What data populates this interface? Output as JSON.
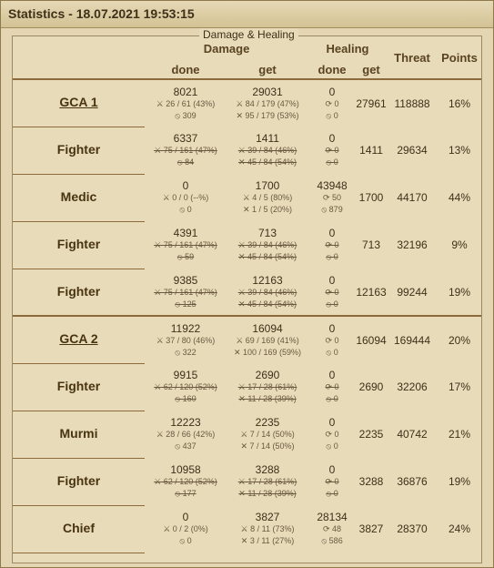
{
  "window": {
    "title": "Statistics - 18.07.2021 19:53:15"
  },
  "panel": {
    "legend": "Damage & Healing",
    "headers": {
      "damage": "Damage",
      "healing": "Healing",
      "threat": "Threat",
      "points": "Points",
      "done": "done",
      "get": "get"
    }
  },
  "rows": [
    {
      "name": "GCA 1",
      "link": true,
      "group_start": false,
      "dmg_done": "8021",
      "dmg_done_sub1": "⚔ 26 / 61 (43%)",
      "dmg_done_sub2": "⦸ 309",
      "dmg_get": "29031",
      "dmg_get_sub1": "⚔ 84 / 179 (47%)",
      "dmg_get_sub2": "✕ 95 / 179 (53%)",
      "heal_done": "0",
      "heal_done_sub1": "⟳ 0",
      "heal_done_sub2": "⦸ 0",
      "heal_get": "27961",
      "threat": "118888",
      "points": "16%",
      "struck": false
    },
    {
      "name": "Fighter",
      "link": false,
      "group_start": false,
      "dmg_done": "6337",
      "dmg_done_sub1": "⚔ 75 / 161 (47%)",
      "dmg_done_sub2": "⦸ 84",
      "dmg_get": "1411",
      "dmg_get_sub1": "⚔ 39 / 84 (46%)",
      "dmg_get_sub2": "✕ 45 / 84 (54%)",
      "heal_done": "0",
      "heal_done_sub1": "⟳ 0",
      "heal_done_sub2": "⦸ 0",
      "heal_get": "1411",
      "threat": "29634",
      "points": "13%",
      "struck": true
    },
    {
      "name": "Medic",
      "link": false,
      "group_start": false,
      "dmg_done": "0",
      "dmg_done_sub1": "⚔ 0 / 0 (--%)",
      "dmg_done_sub2": "⦸ 0",
      "dmg_get": "1700",
      "dmg_get_sub1": "⚔ 4 / 5 (80%)",
      "dmg_get_sub2": "✕ 1 / 5 (20%)",
      "heal_done": "43948",
      "heal_done_sub1": "⟳ 50",
      "heal_done_sub2": "⦸ 879",
      "heal_get": "1700",
      "threat": "44170",
      "points": "44%",
      "struck": false
    },
    {
      "name": "Fighter",
      "link": false,
      "group_start": false,
      "dmg_done": "4391",
      "dmg_done_sub1": "⚔ 75 / 161 (47%)",
      "dmg_done_sub2": "⦸ 59",
      "dmg_get": "713",
      "dmg_get_sub1": "⚔ 39 / 84 (46%)",
      "dmg_get_sub2": "✕ 45 / 84 (54%)",
      "heal_done": "0",
      "heal_done_sub1": "⟳ 0",
      "heal_done_sub2": "⦸ 0",
      "heal_get": "713",
      "threat": "32196",
      "points": "9%",
      "struck": true
    },
    {
      "name": "Fighter",
      "link": false,
      "group_start": false,
      "dmg_done": "9385",
      "dmg_done_sub1": "⚔ 75 / 161 (47%)",
      "dmg_done_sub2": "⦸ 125",
      "dmg_get": "12163",
      "dmg_get_sub1": "⚔ 39 / 84 (46%)",
      "dmg_get_sub2": "✕ 45 / 84 (54%)",
      "heal_done": "0",
      "heal_done_sub1": "⟳ 0",
      "heal_done_sub2": "⦸ 0",
      "heal_get": "12163",
      "threat": "99244",
      "points": "19%",
      "struck": true
    },
    {
      "name": "GCA 2",
      "link": true,
      "group_start": true,
      "dmg_done": "11922",
      "dmg_done_sub1": "⚔ 37 / 80 (46%)",
      "dmg_done_sub2": "⦸ 322",
      "dmg_get": "16094",
      "dmg_get_sub1": "⚔ 69 / 169 (41%)",
      "dmg_get_sub2": "✕ 100 / 169 (59%)",
      "heal_done": "0",
      "heal_done_sub1": "⟳ 0",
      "heal_done_sub2": "⦸ 0",
      "heal_get": "16094",
      "threat": "169444",
      "points": "20%",
      "struck": false
    },
    {
      "name": "Fighter",
      "link": false,
      "group_start": false,
      "dmg_done": "9915",
      "dmg_done_sub1": "⚔ 62 / 120 (52%)",
      "dmg_done_sub2": "⦸ 160",
      "dmg_get": "2690",
      "dmg_get_sub1": "⚔ 17 / 28 (61%)",
      "dmg_get_sub2": "✕ 11 / 28 (39%)",
      "heal_done": "0",
      "heal_done_sub1": "⟳ 0",
      "heal_done_sub2": "⦸ 0",
      "heal_get": "2690",
      "threat": "32206",
      "points": "17%",
      "struck": true
    },
    {
      "name": "Murmi",
      "link": false,
      "group_start": false,
      "dmg_done": "12223",
      "dmg_done_sub1": "⚔ 28 / 66 (42%)",
      "dmg_done_sub2": "⦸ 437",
      "dmg_get": "2235",
      "dmg_get_sub1": "⚔ 7 / 14 (50%)",
      "dmg_get_sub2": "✕ 7 / 14 (50%)",
      "heal_done": "0",
      "heal_done_sub1": "⟳ 0",
      "heal_done_sub2": "⦸ 0",
      "heal_get": "2235",
      "threat": "40742",
      "points": "21%",
      "struck": false
    },
    {
      "name": "Fighter",
      "link": false,
      "group_start": false,
      "dmg_done": "10958",
      "dmg_done_sub1": "⚔ 62 / 120 (52%)",
      "dmg_done_sub2": "⦸ 177",
      "dmg_get": "3288",
      "dmg_get_sub1": "⚔ 17 / 28 (61%)",
      "dmg_get_sub2": "✕ 11 / 28 (39%)",
      "heal_done": "0",
      "heal_done_sub1": "⟳ 0",
      "heal_done_sub2": "⦸ 0",
      "heal_get": "3288",
      "threat": "36876",
      "points": "19%",
      "struck": true
    },
    {
      "name": "Chief",
      "link": false,
      "group_start": false,
      "dmg_done": "0",
      "dmg_done_sub1": "⚔ 0 / 2 (0%)",
      "dmg_done_sub2": "⦸ 0",
      "dmg_get": "3827",
      "dmg_get_sub1": "⚔ 8 / 11 (73%)",
      "dmg_get_sub2": "✕ 3 / 11 (27%)",
      "heal_done": "28134",
      "heal_done_sub1": "⟳ 48",
      "heal_done_sub2": "⦸ 586",
      "heal_get": "3827",
      "threat": "28370",
      "points": "24%",
      "struck": false
    }
  ]
}
